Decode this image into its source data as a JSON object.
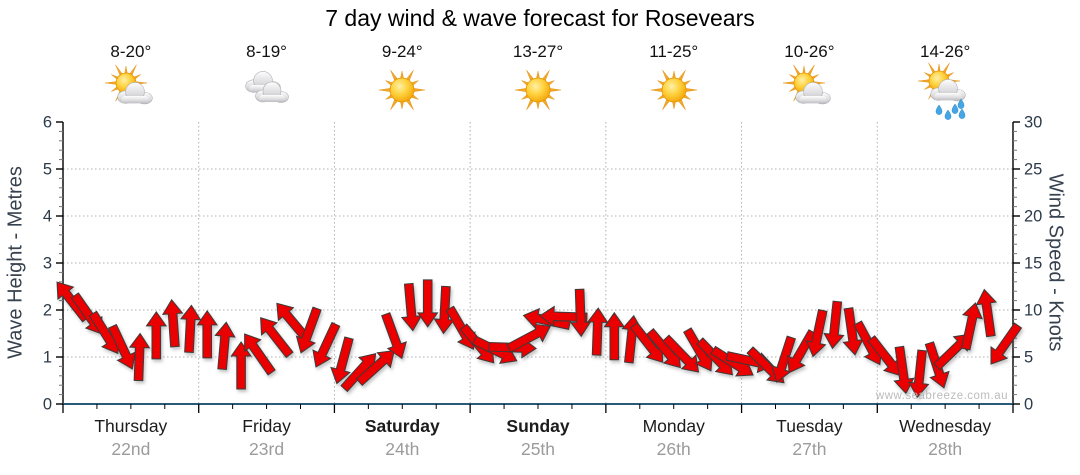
{
  "title": "7 day wind & wave forecast for Rosevears",
  "watermark": "www.seabreeze.com.au",
  "colors": {
    "arrow_fill": "#ea0000",
    "arrow_outline": "#3a3a3a",
    "wave_line": "#2a5a78",
    "grid": "#b0b0b0",
    "axis_line": "#000000",
    "tick_label": "#2c3a49",
    "minor_tick": "#777777",
    "date_label": "#9b9b9b"
  },
  "days": [
    {
      "name": "Thursday",
      "date": "22nd",
      "weekend": false,
      "temp": "8-20°",
      "icon": "sun-behind-cloud"
    },
    {
      "name": "Friday",
      "date": "23rd",
      "weekend": false,
      "temp": "8-19°",
      "icon": "cloudy"
    },
    {
      "name": "Saturday",
      "date": "24th",
      "weekend": true,
      "temp": "9-24°",
      "icon": "sunny"
    },
    {
      "name": "Sunday",
      "date": "25th",
      "weekend": true,
      "temp": "13-27°",
      "icon": "sunny"
    },
    {
      "name": "Monday",
      "date": "26th",
      "weekend": false,
      "temp": "11-25°",
      "icon": "sunny"
    },
    {
      "name": "Tuesday",
      "date": "27th",
      "weekend": false,
      "temp": "10-26°",
      "icon": "sun-behind-cloud"
    },
    {
      "name": "Wednesday",
      "date": "28th",
      "weekend": false,
      "temp": "14-26°",
      "icon": "sun-behind-rain-cloud"
    }
  ],
  "chart_data": {
    "type": "wind-arrow-series",
    "title": "7 day wind & wave forecast for Rosevears",
    "grid": true,
    "left_axis": {
      "label": "Wave Height - Metres",
      "min": 0,
      "max": 6,
      "major_ticks": [
        0,
        1,
        2,
        3,
        4,
        5,
        6
      ],
      "minor_step": 0.2
    },
    "right_axis": {
      "label": "Wind Speed - Knots",
      "min": 0,
      "max": 30,
      "major_ticks": [
        0,
        5,
        10,
        15,
        20,
        25,
        30
      ],
      "minor_step": 1
    },
    "wave_series": {
      "name": "Wave Height",
      "unit": "m",
      "constant_value": 0
    },
    "wind_series": {
      "name": "Wind Speed",
      "unit": "knots",
      "note": "8 arrows per day, direction = pointing angle, 0deg = up, clockwise",
      "points": [
        {
          "k": 11.0,
          "d": -38
        },
        {
          "k": 9.5,
          "d": 145
        },
        {
          "k": 7.5,
          "d": 148
        },
        {
          "k": 6.0,
          "d": 155
        },
        {
          "k": 5.0,
          "d": 2
        },
        {
          "k": 7.3,
          "d": 0
        },
        {
          "k": 8.6,
          "d": -4
        },
        {
          "k": 8.0,
          "d": 3
        },
        {
          "k": 7.4,
          "d": 0
        },
        {
          "k": 6.2,
          "d": 5
        },
        {
          "k": 4.1,
          "d": 0
        },
        {
          "k": 5.4,
          "d": -35
        },
        {
          "k": 7.2,
          "d": -38
        },
        {
          "k": 8.8,
          "d": -40
        },
        {
          "k": 7.8,
          "d": 200
        },
        {
          "k": 6.2,
          "d": 205
        },
        {
          "k": 4.6,
          "d": 195
        },
        {
          "k": 3.5,
          "d": 42
        },
        {
          "k": 4.0,
          "d": 48
        },
        {
          "k": 7.2,
          "d": 160
        },
        {
          "k": 10.3,
          "d": 175
        },
        {
          "k": 10.7,
          "d": 180
        },
        {
          "k": 10.0,
          "d": 183
        },
        {
          "k": 8.0,
          "d": 150
        },
        {
          "k": 6.3,
          "d": 140
        },
        {
          "k": 5.7,
          "d": 116
        },
        {
          "k": 6.0,
          "d": 92
        },
        {
          "k": 7.1,
          "d": 62
        },
        {
          "k": 8.9,
          "d": -78
        },
        {
          "k": 9.3,
          "d": -88
        },
        {
          "k": 9.7,
          "d": 178
        },
        {
          "k": 7.7,
          "d": 2
        },
        {
          "k": 7.2,
          "d": 0
        },
        {
          "k": 6.9,
          "d": 6
        },
        {
          "k": 6.4,
          "d": 142
        },
        {
          "k": 5.8,
          "d": 140
        },
        {
          "k": 5.2,
          "d": 136
        },
        {
          "k": 5.7,
          "d": 150
        },
        {
          "k": 4.9,
          "d": 136
        },
        {
          "k": 4.4,
          "d": 122
        },
        {
          "k": 4.6,
          "d": 102
        },
        {
          "k": 4.0,
          "d": 134
        },
        {
          "k": 4.7,
          "d": 198
        },
        {
          "k": 5.5,
          "d": 210
        },
        {
          "k": 7.5,
          "d": 192
        },
        {
          "k": 8.4,
          "d": 186
        },
        {
          "k": 7.7,
          "d": 172
        },
        {
          "k": 6.4,
          "d": 152
        },
        {
          "k": 5.0,
          "d": 142
        },
        {
          "k": 3.6,
          "d": 172
        },
        {
          "k": 3.2,
          "d": 186
        },
        {
          "k": 4.1,
          "d": 162
        },
        {
          "k": 5.7,
          "d": 46
        },
        {
          "k": 8.3,
          "d": 12
        },
        {
          "k": 9.7,
          "d": -8
        },
        {
          "k": 6.3,
          "d": 215
        }
      ]
    },
    "x_axis": {
      "day_boundaries_gridlines": true,
      "minor_ticks_per_day": 4
    }
  }
}
